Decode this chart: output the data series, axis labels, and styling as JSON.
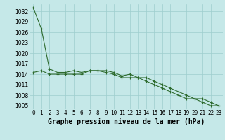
{
  "title": "Graphe pression niveau de la mer (hPa)",
  "bg_color": "#c5e8e8",
  "grid_color": "#9ecece",
  "line_color": "#2d6a2d",
  "line1": [
    1033,
    1027,
    1015.5,
    1014.5,
    1014.5,
    1015,
    1014.5,
    1015,
    1015,
    1015,
    1014.5,
    1013.5,
    1014,
    1013,
    1013,
    1012,
    1011,
    1010,
    1009,
    1008,
    1007,
    1007,
    1006,
    1005
  ],
  "line2": [
    1014.5,
    1015,
    1014,
    1014,
    1014,
    1014,
    1014,
    1015,
    1015,
    1014.5,
    1014,
    1013,
    1013,
    1013,
    1012,
    1011,
    1010,
    1009,
    1008,
    1007,
    1007,
    1006,
    1005,
    1005
  ],
  "x": [
    0,
    1,
    2,
    3,
    4,
    5,
    6,
    7,
    8,
    9,
    10,
    11,
    12,
    13,
    14,
    15,
    16,
    17,
    18,
    19,
    20,
    21,
    22,
    23
  ],
  "ylim": [
    1004,
    1034
  ],
  "yticks": [
    1005,
    1008,
    1011,
    1014,
    1017,
    1020,
    1023,
    1026,
    1029,
    1032
  ],
  "marker": "+",
  "marker_size": 3,
  "line_width": 0.8,
  "title_fontsize": 7,
  "tick_fontsize": 5.5
}
